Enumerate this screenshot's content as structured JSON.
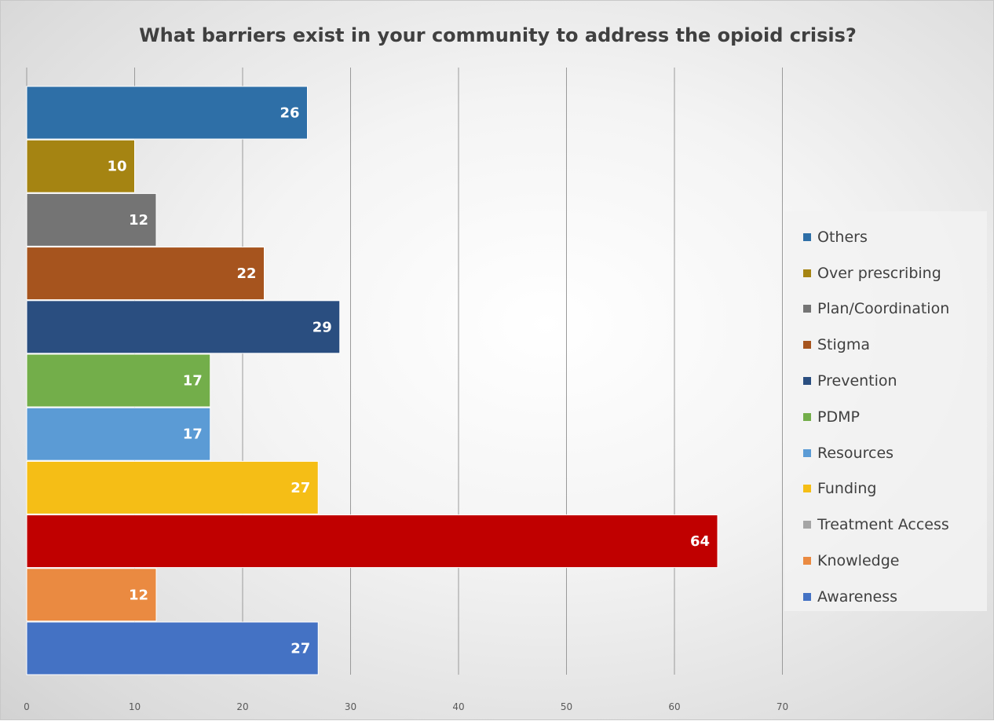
{
  "chart_data": {
    "type": "bar",
    "orientation": "horizontal",
    "title": "What barriers exist in your community to address the opioid crisis?",
    "xlabel": "",
    "ylabel": "",
    "xlim": [
      0,
      70
    ],
    "ticks": [
      "0",
      "10",
      "20",
      "30",
      "40",
      "50",
      "60",
      "70"
    ],
    "grid": true,
    "legend_position": "right",
    "categories": [
      "Others",
      "Over prescribing",
      "Plan/Coordination",
      "Stigma",
      "Prevention",
      "PDMP",
      "Resources",
      "Funding",
      "Treatment Access",
      "Knowledge",
      "Awareness"
    ],
    "values": [
      26,
      10,
      12,
      22,
      29,
      17,
      17,
      27,
      64,
      12,
      27
    ],
    "colors": [
      "#2E6FA7",
      "#A58412",
      "#747474",
      "#A6541E",
      "#2A4E80",
      "#73AE4A",
      "#5B9BD5",
      "#F5BE16",
      "#C00000",
      "#EA8A41",
      "#4472C4"
    ],
    "legend_colors": [
      "#2E6FA7",
      "#A58412",
      "#747474",
      "#A6541E",
      "#2A4E80",
      "#73AE4A",
      "#5B9BD5",
      "#F5BE16",
      "#A5A5A5",
      "#EA8A41",
      "#4472C4"
    ]
  }
}
